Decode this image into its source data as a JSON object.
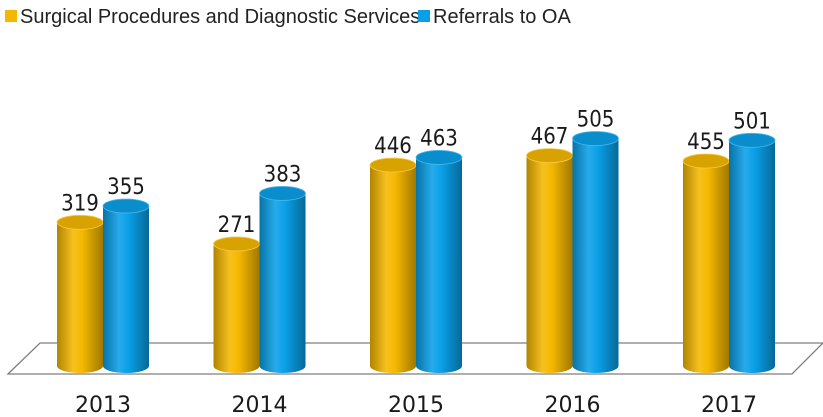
{
  "chart_data": {
    "type": "bar",
    "categories": [
      "2013",
      "2014",
      "2015",
      "2016",
      "2017"
    ],
    "series": [
      {
        "name": "Surgical Procedures and Diagnostic Services",
        "values": [
          319,
          271,
          446,
          467,
          455
        ],
        "color": "#F5B800"
      },
      {
        "name": "Referrals to OA",
        "values": [
          355,
          383,
          463,
          505,
          501
        ],
        "color": "#0AA0E8"
      }
    ],
    "title": "",
    "xlabel": "",
    "ylabel": "",
    "ylim": [
      0,
      520
    ],
    "grid": false,
    "legend_position": "top",
    "style": "3d-cylinder"
  }
}
